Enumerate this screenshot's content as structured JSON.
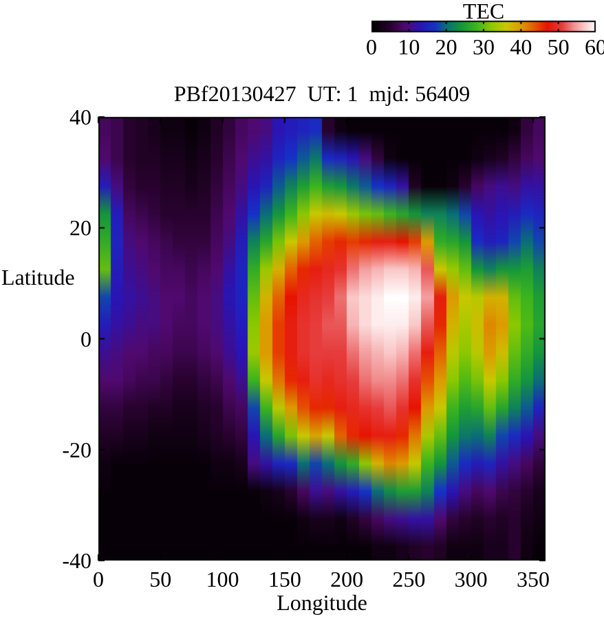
{
  "colorbar": {
    "title": "TEC",
    "ticks": [
      0,
      10,
      20,
      30,
      40,
      50,
      60
    ],
    "range": [
      0,
      60
    ]
  },
  "plot": {
    "title": "PBf20130427  UT: 1  mjd: 56409",
    "xlabel": "Longitude",
    "ylabel": "Latitude",
    "x_ticks": [
      0,
      50,
      100,
      150,
      200,
      250,
      300,
      350
    ],
    "y_ticks": [
      40,
      20,
      0,
      -20,
      -40
    ],
    "xlim": [
      0,
      360
    ],
    "ylim": [
      -40,
      40
    ]
  },
  "chart_data": {
    "type": "heatmap",
    "title": "PBf20130427  UT: 1  mjd: 56409",
    "xlabel": "Longitude",
    "ylabel": "Latitude",
    "colorbar_label": "TEC",
    "xlim": [
      0,
      360
    ],
    "ylim": [
      -40,
      40
    ],
    "zlim": [
      0,
      60
    ],
    "grid": false,
    "lon_centers": [
      5,
      15,
      25,
      35,
      45,
      55,
      65,
      75,
      85,
      95,
      105,
      115,
      125,
      135,
      145,
      155,
      165,
      175,
      185,
      195,
      205,
      215,
      225,
      235,
      245,
      255,
      265,
      275,
      285,
      295,
      305,
      315,
      325,
      335,
      345,
      355
    ],
    "lat_centers": [
      37.5,
      32.5,
      27.5,
      22.5,
      17.5,
      12.5,
      7.5,
      2.5,
      -2.5,
      -7.5,
      -12.5,
      -17.5,
      -22.5,
      -27.5,
      -32.5,
      -37.5
    ],
    "values_tec": [
      [
        8,
        7,
        5,
        4,
        3,
        2,
        2,
        1,
        2,
        4,
        6,
        8,
        9,
        10,
        13,
        14,
        15,
        16,
        5,
        2,
        1,
        1,
        1,
        1,
        1,
        1,
        1,
        1,
        1,
        1,
        1,
        1,
        1,
        2,
        6,
        8
      ],
      [
        9,
        7,
        5,
        4,
        4,
        3,
        3,
        2,
        3,
        5,
        7,
        9,
        11,
        12,
        15,
        17,
        19,
        21,
        16,
        15,
        13,
        10,
        6,
        2,
        1,
        1,
        1,
        1,
        1,
        1,
        2,
        3,
        4,
        6,
        8,
        9
      ],
      [
        14,
        10,
        6,
        5,
        5,
        4,
        4,
        3,
        4,
        6,
        8,
        10,
        13,
        15,
        19,
        22,
        25,
        28,
        25,
        24,
        21,
        19,
        17,
        15,
        12,
        4,
        1,
        1,
        2,
        5,
        8,
        10,
        11,
        10,
        12,
        12
      ],
      [
        24,
        14,
        8,
        7,
        6,
        5,
        5,
        5,
        5,
        7,
        9,
        12,
        17,
        20,
        24,
        28,
        32,
        36,
        37,
        36,
        33,
        31,
        30,
        28,
        26,
        24,
        22,
        22,
        20,
        18,
        13,
        12,
        13,
        14,
        16,
        15
      ],
      [
        27,
        15,
        10,
        9,
        8,
        7,
        6,
        6,
        6,
        8,
        10,
        14,
        22,
        26,
        31,
        36,
        40,
        43,
        45,
        46,
        45,
        46,
        48,
        48,
        47,
        45,
        40,
        27,
        26,
        24,
        16,
        14,
        15,
        18,
        20,
        18
      ],
      [
        30,
        14,
        11,
        10,
        9,
        8,
        8,
        7,
        8,
        9,
        12,
        15,
        27,
        33,
        38,
        43,
        46,
        48,
        49,
        50,
        53,
        55,
        56,
        57,
        57,
        56,
        52,
        36,
        33,
        30,
        24,
        22,
        24,
        24,
        25,
        22
      ],
      [
        18,
        13,
        12,
        11,
        10,
        9,
        9,
        8,
        9,
        10,
        13,
        15,
        30,
        38,
        43,
        47,
        49,
        50,
        51,
        53,
        57,
        58,
        59,
        60,
        60,
        59,
        55,
        48,
        40,
        36,
        35,
        38,
        38,
        30,
        28,
        25
      ],
      [
        14,
        12,
        11,
        10,
        10,
        9,
        8,
        8,
        9,
        10,
        12,
        14,
        32,
        40,
        45,
        48,
        50,
        51,
        52,
        52,
        56,
        58,
        59,
        59,
        59,
        57,
        52,
        46,
        38,
        34,
        37,
        41,
        40,
        32,
        29,
        26
      ],
      [
        11,
        10,
        9,
        9,
        8,
        8,
        7,
        7,
        8,
        9,
        11,
        13,
        33,
        40,
        45,
        48,
        50,
        51,
        51,
        51,
        53,
        55,
        56,
        57,
        56,
        53,
        48,
        43,
        35,
        32,
        35,
        40,
        37,
        30,
        27,
        24
      ],
      [
        9,
        9,
        8,
        7,
        7,
        6,
        5,
        5,
        6,
        7,
        9,
        11,
        28,
        36,
        42,
        46,
        48,
        50,
        49,
        50,
        51,
        53,
        54,
        54,
        53,
        50,
        44,
        40,
        32,
        29,
        31,
        36,
        32,
        27,
        24,
        20
      ],
      [
        6,
        6,
        5,
        5,
        4,
        4,
        3,
        3,
        4,
        5,
        7,
        8,
        18,
        28,
        35,
        40,
        44,
        46,
        46,
        48,
        49,
        50,
        51,
        52,
        50,
        47,
        40,
        36,
        28,
        25,
        26,
        30,
        26,
        22,
        19,
        15
      ],
      [
        4,
        4,
        3,
        3,
        2,
        2,
        2,
        2,
        3,
        4,
        5,
        6,
        13,
        20,
        26,
        31,
        36,
        39,
        36,
        43,
        46,
        47,
        48,
        48,
        46,
        42,
        34,
        30,
        24,
        21,
        20,
        22,
        18,
        16,
        13,
        10
      ],
      [
        2,
        1,
        1,
        1,
        1,
        1,
        1,
        1,
        1,
        2,
        2,
        3,
        10,
        12,
        15,
        16,
        20,
        18,
        20,
        24,
        27,
        32,
        38,
        41,
        40,
        36,
        28,
        24,
        19,
        16,
        14,
        15,
        12,
        10,
        8,
        6
      ],
      [
        1,
        1,
        1,
        1,
        1,
        1,
        1,
        1,
        1,
        1,
        1,
        1,
        1,
        2,
        3,
        5,
        8,
        11,
        10,
        12,
        14,
        17,
        20,
        23,
        25,
        25,
        22,
        17,
        13,
        10,
        8,
        9,
        7,
        6,
        5,
        3
      ],
      [
        1,
        1,
        1,
        1,
        1,
        1,
        1,
        1,
        1,
        1,
        1,
        1,
        1,
        1,
        1,
        1,
        2,
        3,
        3,
        2,
        4,
        6,
        8,
        10,
        11,
        12,
        12,
        9,
        6,
        5,
        4,
        5,
        4,
        5,
        3,
        2
      ],
      [
        1,
        1,
        1,
        1,
        1,
        1,
        1,
        1,
        1,
        1,
        1,
        1,
        1,
        1,
        1,
        1,
        1,
        1,
        1,
        1,
        1,
        1,
        2,
        2,
        3,
        4,
        5,
        4,
        2,
        2,
        2,
        3,
        3,
        5,
        2,
        1
      ]
    ],
    "palette_stops": [
      [
        0,
        "#000000"
      ],
      [
        5,
        "#28022e"
      ],
      [
        9,
        "#50096e"
      ],
      [
        13,
        "#2a14b4"
      ],
      [
        17,
        "#1432c8"
      ],
      [
        20,
        "#0a6e78"
      ],
      [
        24,
        "#14963c"
      ],
      [
        28,
        "#3cb41e"
      ],
      [
        32,
        "#8cc800"
      ],
      [
        36,
        "#c8c800"
      ],
      [
        40,
        "#dc9b00"
      ],
      [
        44,
        "#e65000"
      ],
      [
        47,
        "#e61400"
      ],
      [
        51,
        "#e63c3c"
      ],
      [
        54,
        "#f08c8c"
      ],
      [
        57,
        "#fac8c8"
      ],
      [
        60,
        "#ffffff"
      ]
    ],
    "legend_position": "top-right-colorbar"
  }
}
